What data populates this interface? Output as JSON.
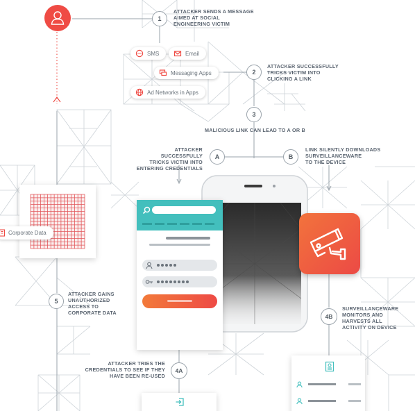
{
  "colors": {
    "accent_red": "#ef4b44",
    "accent_orange": "#f27a3a",
    "teal": "#43bfbd",
    "line": "#9aa3ab",
    "text": "#5a6470"
  },
  "steps": {
    "s1": {
      "num": "1",
      "text": "ATTACKER SENDS A MESSAGE\nAIMED AT SOCIAL\nENGINEERING VICTIM"
    },
    "s2": {
      "num": "2",
      "text": "ATTACKER SUCCESSFULLY\nTRICKS VICTIM INTO\nCLICKING A LINK"
    },
    "s3": {
      "num": "3",
      "text": "MALICIOUS LINK CAN LEAD TO A OR B"
    },
    "sA": {
      "num": "A",
      "text": "ATTACKER SUCCESSFULLY\nTRICKS VICTIM INTO\nENTERING CREDENTIALS"
    },
    "sB": {
      "num": "B",
      "text": "LINK SILENTLY DOWNLOADS\nSURVEILLANCEWARE\nTO THE DEVICE"
    },
    "s4A": {
      "num": "4A",
      "text": "ATTACKER TRIES THE\nCREDENTIALS TO SEE IF THEY\nHAVE BEEN RE-USED"
    },
    "s4B": {
      "num": "4B",
      "text": "SURVEILLANCEWARE\nMONITORS AND\nHARVESTS ALL\nACTIVITY ON DEVICE"
    },
    "s5": {
      "num": "5",
      "text": "ATTACKER GAINS\nUNAUTHORIZED\nACCESS TO\nCORPORATE DATA"
    }
  },
  "channels": {
    "sms": "SMS",
    "email": "Email",
    "messaging": "Messaging Apps",
    "ad_networks": "Ad Networks in Apps"
  },
  "corporate": {
    "label": "Corporate Data"
  },
  "icons": {
    "attacker": "user-icon",
    "camera": "security-camera-icon",
    "search": "search-icon",
    "user": "user-icon",
    "key": "key-icon",
    "login": "login-icon",
    "contact": "contact-card-icon",
    "building": "building-icon"
  }
}
